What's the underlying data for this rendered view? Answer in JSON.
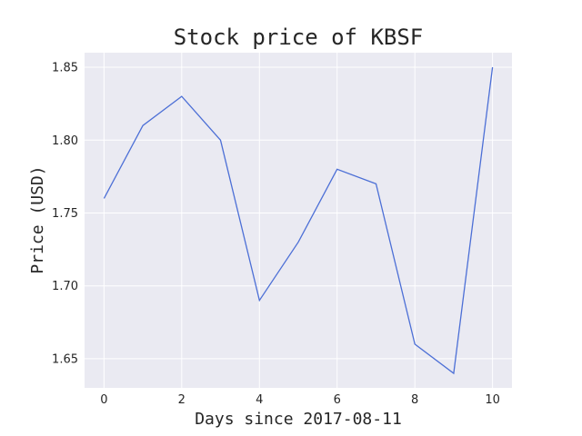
{
  "chart_data": {
    "type": "line",
    "title": "Stock price of KBSF",
    "xlabel": "Days since 2017-08-11",
    "ylabel": "Price (USD)",
    "x": [
      0,
      1,
      2,
      3,
      4,
      5,
      6,
      7,
      8,
      9,
      10
    ],
    "series": [
      {
        "values": [
          1.76,
          1.81,
          1.83,
          1.8,
          1.69,
          1.73,
          1.78,
          1.77,
          1.66,
          1.64,
          1.85
        ],
        "color": "#4c6fd6"
      }
    ],
    "xlim": [
      -0.5,
      10.5
    ],
    "ylim": [
      1.63,
      1.86
    ],
    "x_ticks": [
      0,
      2,
      4,
      6,
      8,
      10
    ],
    "x_tick_labels": [
      "0",
      "2",
      "4",
      "6",
      "8",
      "10"
    ],
    "y_ticks": [
      1.65,
      1.7,
      1.75,
      1.8,
      1.85
    ],
    "y_tick_labels": [
      "1.65",
      "1.70",
      "1.75",
      "1.80",
      "1.85"
    ],
    "grid": true,
    "background_color": "#eaeaf2",
    "grid_color": "#ffffff"
  }
}
